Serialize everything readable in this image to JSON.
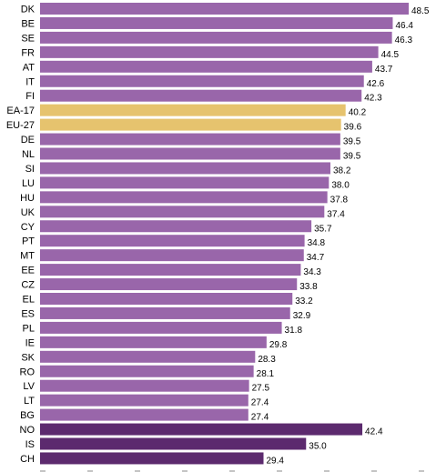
{
  "chart_data": {
    "type": "bar",
    "orientation": "horizontal",
    "title": "",
    "xlabel": "",
    "ylabel": "",
    "xlim": [
      0,
      48.5
    ],
    "grid": false,
    "legend": "none",
    "colors": {
      "country": "#9966aa",
      "aggregate": "#e6c36e",
      "non_eu": "#5c2a6e"
    },
    "bars": [
      {
        "label": "DK",
        "value": 48.5,
        "group": "country",
        "value_label": "48.5"
      },
      {
        "label": "BE",
        "value": 46.4,
        "group": "country",
        "value_label": "46.4"
      },
      {
        "label": "SE",
        "value": 46.3,
        "group": "country",
        "value_label": "46.3"
      },
      {
        "label": "FR",
        "value": 44.5,
        "group": "country",
        "value_label": "44.5"
      },
      {
        "label": "AT",
        "value": 43.7,
        "group": "country",
        "value_label": "43.7"
      },
      {
        "label": "IT",
        "value": 42.6,
        "group": "country",
        "value_label": "42.6"
      },
      {
        "label": "FI",
        "value": 42.3,
        "group": "country",
        "value_label": "42.3"
      },
      {
        "label": "EA-17",
        "value": 40.2,
        "group": "aggregate",
        "value_label": "40.2"
      },
      {
        "label": "EU-27",
        "value": 39.6,
        "group": "aggregate",
        "value_label": "39.6"
      },
      {
        "label": "DE",
        "value": 39.5,
        "group": "country",
        "value_label": "39.5"
      },
      {
        "label": "NL",
        "value": 39.5,
        "group": "country",
        "value_label": "39.5"
      },
      {
        "label": "SI",
        "value": 38.2,
        "group": "country",
        "value_label": "38.2"
      },
      {
        "label": "LU",
        "value": 38.0,
        "group": "country",
        "value_label": "38.0"
      },
      {
        "label": "HU",
        "value": 37.8,
        "group": "country",
        "value_label": "37.8"
      },
      {
        "label": "UK",
        "value": 37.4,
        "group": "country",
        "value_label": "37.4"
      },
      {
        "label": "CY",
        "value": 35.7,
        "group": "country",
        "value_label": "35.7"
      },
      {
        "label": "PT",
        "value": 34.8,
        "group": "country",
        "value_label": "34.8"
      },
      {
        "label": "MT",
        "value": 34.7,
        "group": "country",
        "value_label": "34.7"
      },
      {
        "label": "EE",
        "value": 34.3,
        "group": "country",
        "value_label": "34.3"
      },
      {
        "label": "CZ",
        "value": 33.8,
        "group": "country",
        "value_label": "33.8"
      },
      {
        "label": "EL",
        "value": 33.2,
        "group": "country",
        "value_label": "33.2"
      },
      {
        "label": "ES",
        "value": 32.9,
        "group": "country",
        "value_label": "32.9"
      },
      {
        "label": "PL",
        "value": 31.8,
        "group": "country",
        "value_label": "31.8"
      },
      {
        "label": "IE",
        "value": 29.8,
        "group": "country",
        "value_label": "29.8"
      },
      {
        "label": "SK",
        "value": 28.3,
        "group": "country",
        "value_label": "28.3"
      },
      {
        "label": "RO",
        "value": 28.1,
        "group": "country",
        "value_label": "28.1"
      },
      {
        "label": "LV",
        "value": 27.5,
        "group": "country",
        "value_label": "27.5"
      },
      {
        "label": "LT",
        "value": 27.4,
        "group": "country",
        "value_label": "27.4"
      },
      {
        "label": "BG",
        "value": 27.4,
        "group": "country",
        "value_label": "27.4"
      },
      {
        "label": "NO",
        "value": 42.4,
        "group": "non_eu",
        "value_label": "42.4"
      },
      {
        "label": "IS",
        "value": 35.0,
        "group": "non_eu",
        "value_label": "35.0"
      },
      {
        "label": "CH",
        "value": 29.4,
        "group": "non_eu",
        "value_label": "29.4"
      }
    ]
  }
}
